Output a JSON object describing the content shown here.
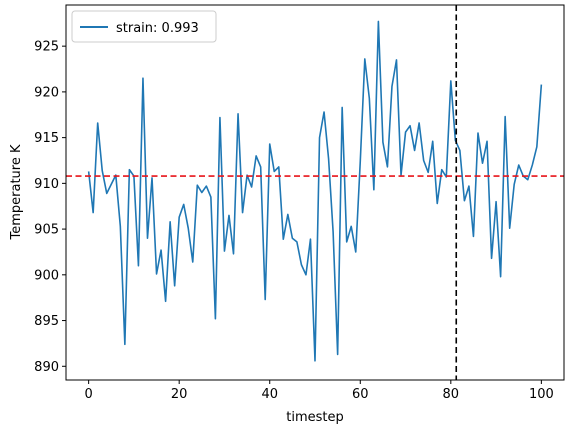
{
  "chart_data": {
    "type": "line",
    "xlabel": "timestep",
    "ylabel": "Temperature K",
    "xlim": [
      -5,
      105
    ],
    "ylim": [
      888.5,
      929.5
    ],
    "xticks": [
      0,
      20,
      40,
      60,
      80,
      100
    ],
    "yticks": [
      890,
      895,
      900,
      905,
      910,
      915,
      920,
      925
    ],
    "grid": false,
    "legend_position": "top-left",
    "series": [
      {
        "name": "strain: 0.993",
        "color": "#1f77b4",
        "x": [
          0,
          1,
          2,
          3,
          4,
          5,
          6,
          7,
          8,
          9,
          10,
          11,
          12,
          13,
          14,
          15,
          16,
          17,
          18,
          19,
          20,
          21,
          22,
          23,
          24,
          25,
          26,
          27,
          28,
          29,
          30,
          31,
          32,
          33,
          34,
          35,
          36,
          37,
          38,
          39,
          40,
          41,
          42,
          43,
          44,
          45,
          46,
          47,
          48,
          49,
          50,
          51,
          52,
          53,
          54,
          55,
          56,
          57,
          58,
          59,
          60,
          61,
          62,
          63,
          64,
          65,
          66,
          67,
          68,
          69,
          70,
          71,
          72,
          73,
          74,
          75,
          76,
          77,
          78,
          79,
          80,
          81,
          82,
          83,
          84,
          85,
          86,
          87,
          88,
          89,
          90,
          91,
          92,
          93,
          94,
          95,
          96,
          97,
          98,
          99,
          100
        ],
        "y": [
          911.3,
          906.8,
          916.6,
          911.4,
          908.9,
          909.9,
          910.9,
          905.3,
          892.4,
          911.5,
          910.8,
          901.0,
          921.5,
          904.0,
          910.6,
          900.1,
          902.7,
          897.1,
          905.8,
          898.8,
          906.3,
          907.7,
          905.1,
          901.4,
          909.8,
          909.0,
          909.7,
          908.5,
          895.2,
          917.2,
          902.6,
          906.5,
          902.3,
          917.6,
          906.8,
          910.9,
          909.6,
          913.0,
          911.8,
          897.3,
          914.3,
          911.3,
          911.8,
          903.9,
          906.6,
          904.0,
          903.6,
          901.1,
          900.0,
          903.9,
          890.6,
          915.0,
          917.8,
          912.7,
          904.7,
          891.3,
          918.3,
          903.6,
          905.3,
          902.5,
          912.4,
          923.6,
          919.3,
          909.3,
          927.7,
          914.5,
          911.8,
          920.6,
          923.5,
          910.9,
          915.6,
          916.3,
          913.6,
          916.6,
          912.5,
          911.2,
          914.6,
          907.8,
          911.5,
          910.7,
          921.2,
          914.7,
          913.6,
          908.1,
          909.7,
          904.2,
          915.5,
          912.2,
          914.6,
          901.8,
          908.0,
          899.8,
          917.3,
          905.1,
          909.9,
          912.0,
          910.8,
          910.4,
          912.0,
          914.0,
          920.8
        ]
      }
    ],
    "reference_lines": [
      {
        "orientation": "horizontal",
        "value": 910.8,
        "color": "#e8141a",
        "style": "dashed"
      },
      {
        "orientation": "vertical",
        "value": 81.2,
        "color": "#000000",
        "style": "dashed"
      }
    ]
  }
}
